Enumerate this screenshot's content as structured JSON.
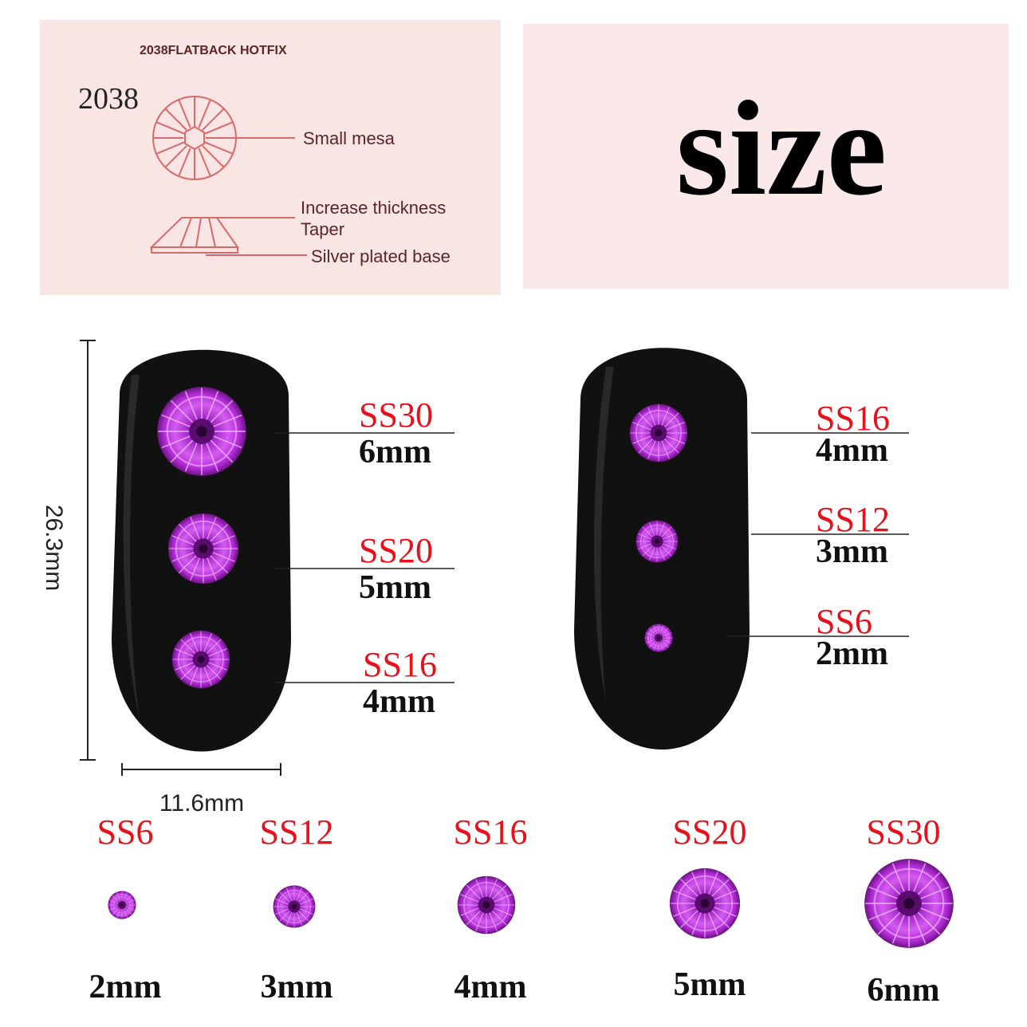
{
  "diagram_panel": {
    "heading": "2038FLATBACK HOTFIX",
    "model": "2038",
    "callouts": [
      "Small mesa",
      "Increase thickness",
      "Taper",
      "Silver plated base"
    ]
  },
  "title_panel": {
    "title": "size"
  },
  "nail_dimensions": {
    "height": "26.3mm",
    "width": "11.6mm"
  },
  "left_nail": [
    {
      "code": "SS30",
      "size": "6mm"
    },
    {
      "code": "SS20",
      "size": "5mm"
    },
    {
      "code": "SS16",
      "size": "4mm"
    }
  ],
  "right_nail": [
    {
      "code": "SS16",
      "size": "4mm"
    },
    {
      "code": "SS12",
      "size": "3mm"
    },
    {
      "code": "SS6",
      "size": "2mm"
    }
  ],
  "size_row": [
    {
      "code": "SS6",
      "size": "2mm"
    },
    {
      "code": "SS12",
      "size": "3mm"
    },
    {
      "code": "SS16",
      "size": "4mm"
    },
    {
      "code": "SS20",
      "size": "5mm"
    },
    {
      "code": "SS30",
      "size": "6mm"
    }
  ],
  "colors": {
    "panel": "#f9e5e4",
    "diagram_line": "#d86a6a",
    "code_text": "#e8101a",
    "gem": "#b12ad6",
    "nail": "#111111"
  }
}
